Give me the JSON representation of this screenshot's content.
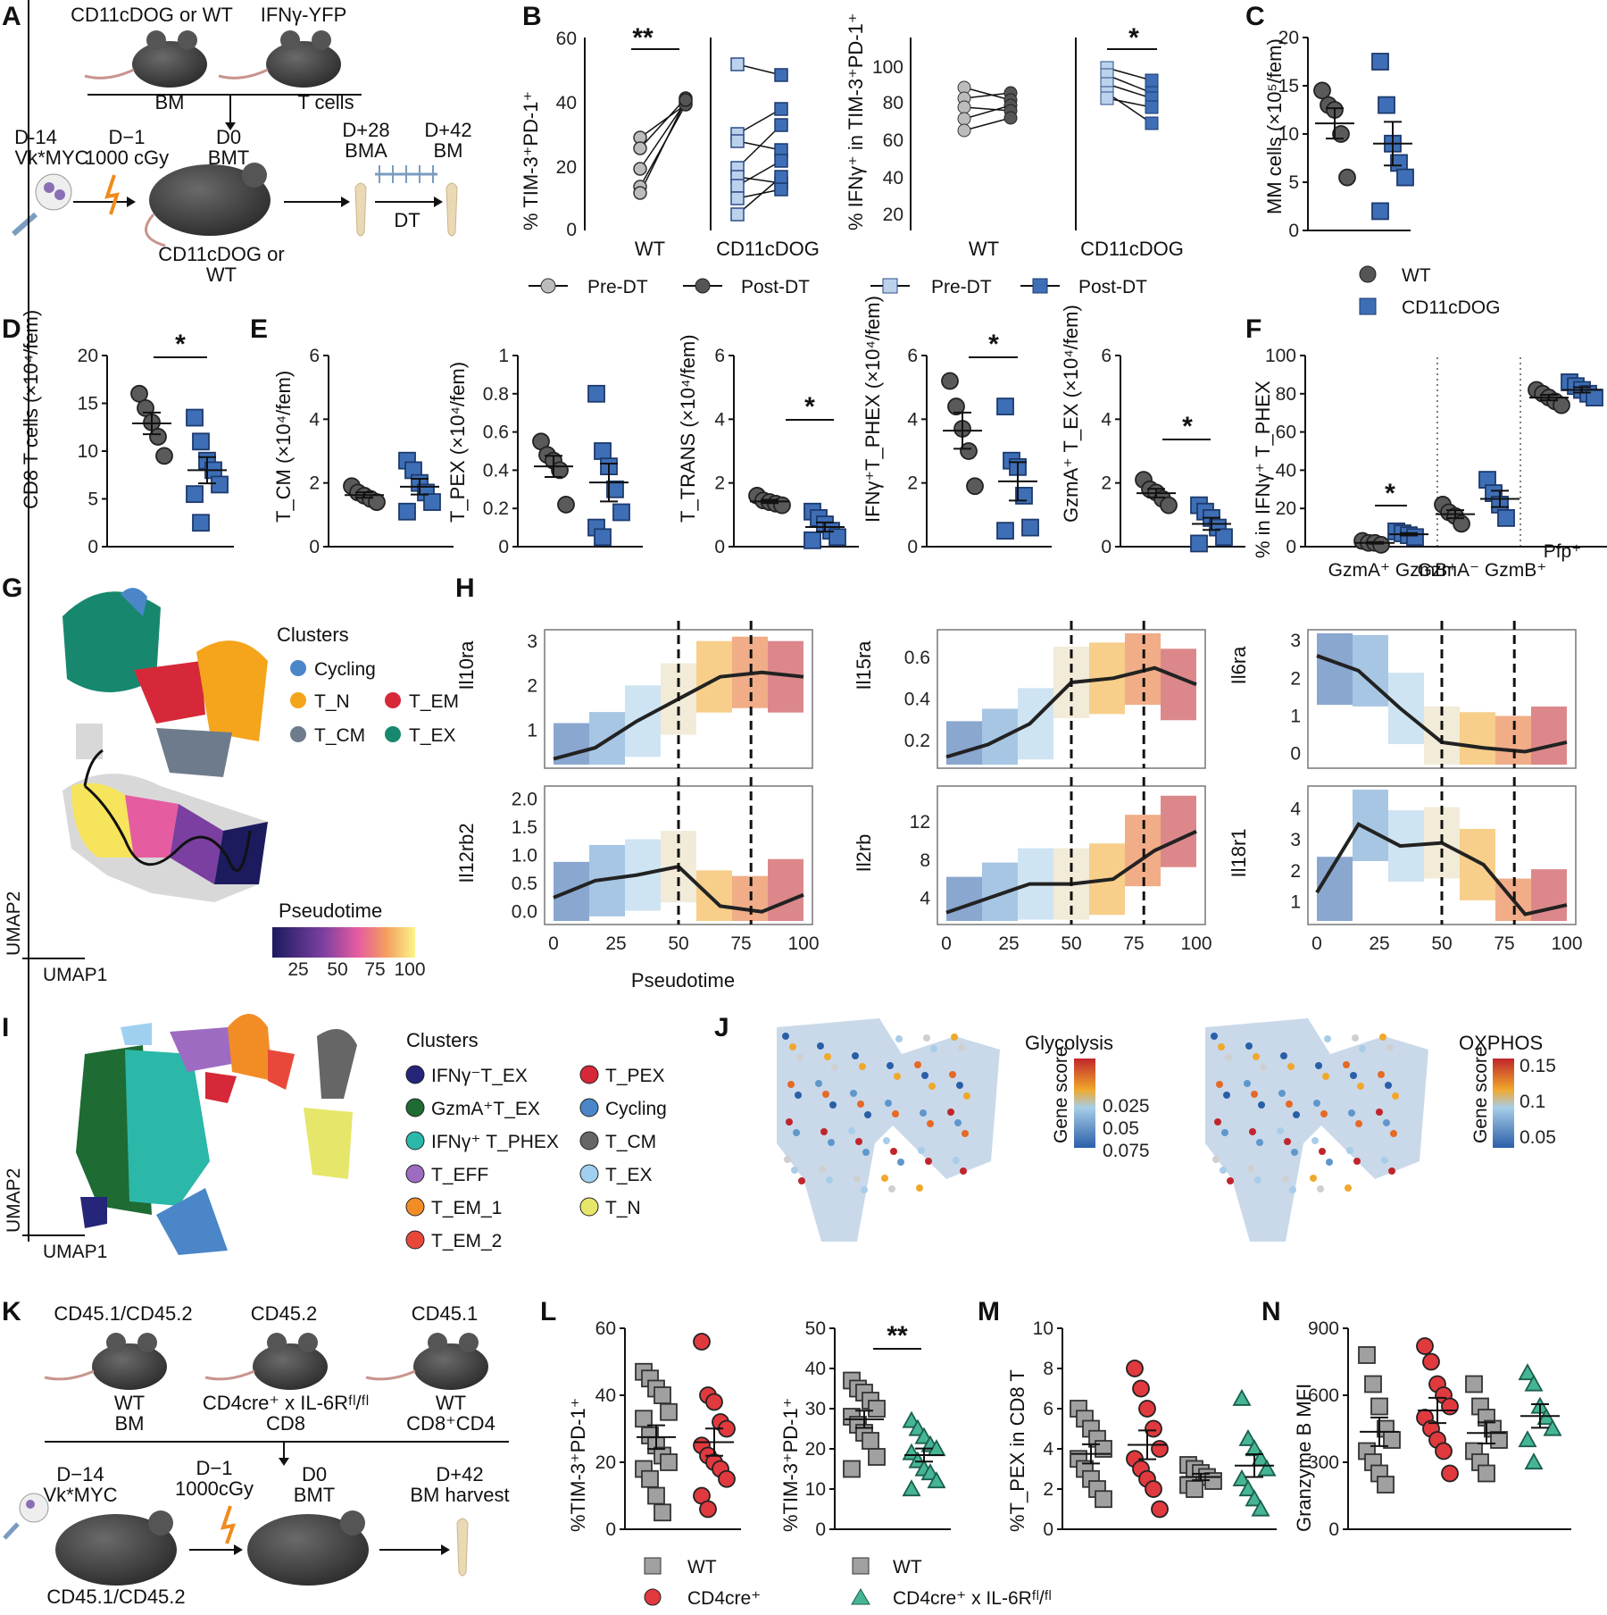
{
  "panels": {
    "A": {
      "label": "A",
      "donor_left": "CD11cDOG or WT",
      "donor_right": "IFNγ-YFP",
      "bm": "BM",
      "tcells": "T cells",
      "d14": "D-14",
      "vkmyc": "Vk*MYC",
      "d1": "D−1",
      "cgy": "1000 cGy",
      "d0": "D0",
      "bmt": "BMT",
      "d28": "D+28",
      "bma": "BMA",
      "d42": "D+42",
      "bm2": "BM",
      "dt": "DT",
      "recipient1": "CD11cDOG or",
      "recipient2": "WT"
    },
    "B": {
      "label": "B",
      "y1_label": "% TIM-3⁺PD-1⁺",
      "y2_label": "% IFNγ⁺ in TIM-3⁺PD-1⁺",
      "groups": [
        "WT",
        "CD11cDOG"
      ],
      "sig1": "**",
      "sig2": "*",
      "legend": [
        "Pre-DT",
        "Post-DT",
        "Pre-DT",
        "Post-DT"
      ]
    },
    "C": {
      "label": "C",
      "ylabel": "MM cells (×10⁵/fem)",
      "legend": [
        "WT",
        "CD11cDOG"
      ]
    },
    "D": {
      "label": "D",
      "ylabel": "CD8 T cells (×10⁴/fem)",
      "sig": "*"
    },
    "E": {
      "label": "E",
      "ylabels": [
        "T_CM (×10⁴/fem)",
        "T_PEX (×10⁴/fem)",
        "T_TRANS (×10⁴/fem)",
        "IFNγ⁺T_PHEX (×10⁴/fem)",
        "GzmA⁺ T_EX (×10⁴/fem)"
      ],
      "sig": "*"
    },
    "F": {
      "label": "F",
      "ylabel": "% in IFNγ⁺ T_PHEX",
      "cats": [
        "GzmA⁺ GzmB⁺",
        "GzmA⁻ GzmB⁺",
        "Pfp⁺"
      ],
      "sig": "*"
    },
    "G": {
      "label": "G",
      "clusters_title": "Clusters",
      "clusters": [
        "Cycling",
        "T_N",
        "T_EM",
        "T_CM",
        "T_EX"
      ],
      "pseudotime": "Pseudotime",
      "pt_ticks": [
        "25",
        "50",
        "75",
        "100"
      ],
      "umap1": "UMAP1",
      "umap2": "UMAP2"
    },
    "H": {
      "label": "H",
      "genes": [
        "Il10ra",
        "Il15ra",
        "Il6ra",
        "Il12rb2",
        "Il2rb",
        "Il18r1"
      ],
      "xlabel": "Pseudotime",
      "xticks": [
        "0",
        "25",
        "50",
        "75",
        "100"
      ]
    },
    "I": {
      "label": "I",
      "clusters_title": "Clusters",
      "clusters": [
        "IFNγ⁻T_EX",
        "GzmA⁺T_EX",
        "IFNγ⁺ T_PHEX",
        "T_EFF",
        "T_EM_1",
        "T_EM_2",
        "T_PEX",
        "Cycling",
        "T_CM",
        "T_EX",
        "T_N"
      ]
    },
    "J": {
      "label": "J",
      "glyco": "Glycolysis",
      "oxphos": "OXPHOS",
      "gene_score": "Gene score",
      "glyco_ticks": [
        "0.025",
        "0.05",
        "0.075"
      ],
      "ox_ticks": [
        "0.15",
        "0.1",
        "0.05"
      ]
    },
    "K": {
      "label": "K",
      "m1": "CD45.1/CD45.2",
      "m2": "CD45.2",
      "m3": "CD45.1",
      "m1a": "WT",
      "m1b": "BM",
      "m2a": "CD4cre⁺ x IL-6Rᶠˡ/ᶠˡ",
      "m2b": "CD8",
      "m3a": "WT",
      "m3b": "CD8⁺CD4",
      "d14": "D−14",
      "vkmyc": "Vk*MYC",
      "d1": "D−1",
      "cgy": "1000cGy",
      "d0": "D0",
      "bmt": "BMT",
      "d42": "D+42",
      "harvest": "BM harvest",
      "bottom": "CD45.1/CD45.2"
    },
    "L": {
      "label": "L",
      "ylabel": "%TIM-3⁺PD-1⁺",
      "sig": "**",
      "legend": [
        "WT",
        "CD4cre⁺",
        "WT",
        "CD4cre⁺ x IL-6Rᶠˡ/ᶠˡ"
      ]
    },
    "M": {
      "label": "M",
      "ylabel": "%T_PEX in CD8 T"
    },
    "N": {
      "label": "N",
      "ylabel": "Granzyme B MFI"
    }
  },
  "chart_data": [
    {
      "id": "C",
      "type": "scatter",
      "ylabel": "MM cells (x10^5/fem)",
      "ylim": [
        0,
        20
      ],
      "groups": [
        {
          "name": "WT",
          "values": [
            14.5,
            13,
            12.5,
            10,
            5.5
          ]
        },
        {
          "name": "CD11cDOG",
          "values": [
            17.5,
            13,
            9,
            7,
            5.5,
            2
          ]
        }
      ]
    },
    {
      "id": "D",
      "type": "scatter",
      "ylabel": "CD8 T cells (x10^4/fem)",
      "ylim": [
        0,
        20
      ],
      "groups": [
        {
          "name": "WT",
          "values": [
            16,
            14.5,
            13,
            11.5,
            9.5
          ]
        },
        {
          "name": "CD11cDOG",
          "values": [
            13.5,
            11,
            9,
            8,
            6.5,
            5.5,
            2.5
          ]
        }
      ]
    },
    {
      "id": "L",
      "type": "scatter",
      "ylabel": "%TIM-3+PD-1+",
      "ylim": [
        0,
        60
      ],
      "groups": [
        {
          "name": "WT",
          "values": [
            47,
            45,
            42,
            40,
            35,
            33,
            28,
            25,
            22,
            20,
            18,
            15,
            10,
            5
          ]
        },
        {
          "name": "CD4cre+",
          "values": [
            56,
            40,
            38,
            32,
            30,
            25,
            22,
            20,
            18,
            15,
            10,
            6
          ]
        }
      ]
    },
    {
      "id": "L2",
      "type": "scatter",
      "ylabel": "%TIM-3+PD-1+",
      "ylim": [
        0,
        50
      ],
      "groups": [
        {
          "name": "WT",
          "values": [
            37,
            35,
            34,
            32,
            30,
            28,
            26,
            24,
            22,
            18,
            15
          ]
        },
        {
          "name": "CD4cre+ x IL-6R fl/fl",
          "values": [
            27,
            25,
            23,
            21,
            20,
            19,
            17,
            15,
            14,
            12,
            10
          ]
        }
      ]
    }
  ]
}
